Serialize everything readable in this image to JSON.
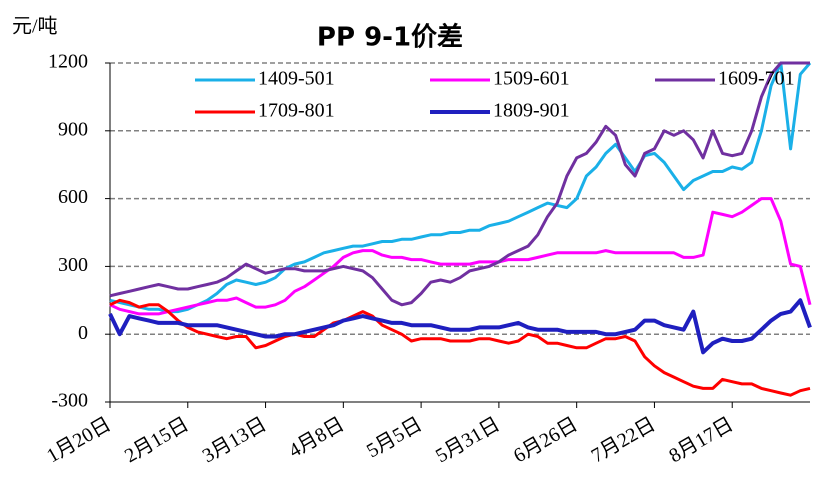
{
  "chart_data": {
    "type": "line",
    "title": "PP 9-1价差",
    "y_label": "元/吨",
    "categories": [
      "1月20日",
      null,
      null,
      null,
      null,
      null,
      null,
      null,
      "2月15日",
      null,
      null,
      null,
      null,
      null,
      null,
      null,
      "3月13日",
      null,
      null,
      null,
      null,
      null,
      null,
      null,
      "4月8日",
      null,
      null,
      null,
      null,
      null,
      null,
      null,
      "5月5日",
      null,
      null,
      null,
      null,
      null,
      null,
      null,
      "5月31日",
      null,
      null,
      null,
      null,
      null,
      null,
      null,
      "6月26日",
      null,
      null,
      null,
      null,
      null,
      null,
      null,
      "7月22日",
      null,
      null,
      null,
      null,
      null,
      null,
      null,
      "8月17日",
      null,
      null,
      null,
      null,
      null,
      null,
      null,
      null
    ],
    "ylim": [
      -300,
      1200
    ],
    "yticks": [
      -300,
      0,
      300,
      600,
      900,
      1200
    ],
    "grid": true,
    "series": [
      {
        "name": "1409-501",
        "color": "#1ab0e8",
        "values": [
          150,
          140,
          130,
          120,
          110,
          110,
          100,
          100,
          110,
          130,
          150,
          180,
          220,
          240,
          230,
          220,
          230,
          250,
          290,
          310,
          320,
          340,
          360,
          370,
          380,
          390,
          390,
          400,
          410,
          410,
          420,
          420,
          430,
          440,
          440,
          450,
          450,
          460,
          460,
          480,
          490,
          500,
          520,
          540,
          560,
          580,
          570,
          560,
          600,
          700,
          740,
          800,
          840,
          780,
          720,
          790,
          800,
          760,
          700,
          640,
          680,
          700,
          720,
          720,
          740,
          730,
          760,
          900,
          1100,
          1200,
          820,
          1150,
          1200
        ]
      },
      {
        "name": "1509-601",
        "color": "#ff00ff",
        "values": [
          130,
          110,
          100,
          90,
          90,
          90,
          100,
          110,
          120,
          130,
          140,
          150,
          150,
          160,
          140,
          120,
          120,
          130,
          150,
          190,
          210,
          240,
          270,
          300,
          340,
          360,
          370,
          370,
          350,
          340,
          340,
          330,
          330,
          320,
          310,
          310,
          310,
          310,
          320,
          320,
          320,
          330,
          330,
          330,
          340,
          350,
          360,
          360,
          360,
          360,
          360,
          370,
          360,
          360,
          360,
          360,
          360,
          360,
          360,
          340,
          340,
          350,
          540,
          530,
          520,
          540,
          570,
          600,
          600,
          500,
          310,
          300,
          130
        ]
      },
      {
        "name": "1609-701",
        "color": "#7030a0",
        "values": [
          170,
          180,
          190,
          200,
          210,
          220,
          210,
          200,
          200,
          210,
          220,
          230,
          250,
          280,
          310,
          290,
          270,
          280,
          290,
          290,
          280,
          280,
          280,
          290,
          300,
          290,
          280,
          250,
          200,
          150,
          130,
          140,
          180,
          230,
          240,
          230,
          250,
          280,
          290,
          300,
          320,
          350,
          370,
          390,
          440,
          520,
          580,
          700,
          780,
          800,
          850,
          920,
          880,
          750,
          700,
          800,
          820,
          900,
          880,
          900,
          860,
          780,
          900,
          800,
          790,
          800,
          900,
          1050,
          1150,
          1200,
          1200,
          1200,
          1200
        ]
      },
      {
        "name": "1709-801",
        "color": "#ff0000",
        "values": [
          130,
          150,
          140,
          120,
          130,
          130,
          100,
          60,
          30,
          10,
          0,
          -10,
          -20,
          -10,
          -10,
          -60,
          -50,
          -30,
          -10,
          0,
          -10,
          -10,
          20,
          50,
          60,
          80,
          100,
          80,
          40,
          20,
          0,
          -30,
          -20,
          -20,
          -20,
          -30,
          -30,
          -30,
          -20,
          -20,
          -30,
          -40,
          -30,
          0,
          -10,
          -40,
          -40,
          -50,
          -60,
          -60,
          -40,
          -20,
          -20,
          -10,
          -30,
          -100,
          -140,
          -170,
          -190,
          -210,
          -230,
          -240,
          -240,
          -200,
          -210,
          -220,
          -220,
          -240,
          -250,
          -260,
          -270,
          -250,
          -240
        ]
      },
      {
        "name": "1809-901",
        "color": "#1f1fbf",
        "values": [
          90,
          0,
          80,
          70,
          60,
          50,
          50,
          50,
          40,
          40,
          40,
          40,
          30,
          20,
          10,
          0,
          -10,
          -10,
          0,
          0,
          10,
          20,
          30,
          40,
          60,
          70,
          80,
          70,
          60,
          50,
          50,
          40,
          40,
          40,
          30,
          20,
          20,
          20,
          30,
          30,
          30,
          40,
          50,
          30,
          20,
          20,
          20,
          10,
          10,
          10,
          10,
          0,
          0,
          10,
          20,
          60,
          60,
          40,
          30,
          20,
          100,
          -80,
          -40,
          -20,
          -30,
          -30,
          -20,
          20,
          60,
          90,
          100,
          150,
          30
        ]
      }
    ]
  }
}
